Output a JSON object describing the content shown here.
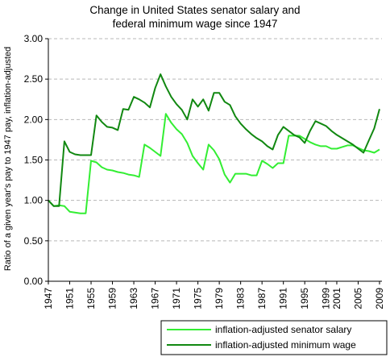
{
  "chart_data": {
    "type": "line",
    "title": [
      "Change in United States senator salary and",
      "federal minimum wage since 1947"
    ],
    "xlabel": "",
    "ylabel": "Ratio of a given year's pay to 1947 pay, inflation-adjusted",
    "xlim": [
      1947,
      2009
    ],
    "ylim": [
      0.0,
      3.0
    ],
    "yticks": [
      "0.00",
      "0.50",
      "1.00",
      "1.50",
      "2.00",
      "2.50",
      "3.00"
    ],
    "xticks": [
      "1947",
      "1951",
      "1955",
      "1959",
      "1963",
      "1967",
      "1971",
      "1975",
      "1979",
      "1983",
      "1987",
      "1991",
      "1995",
      "1999",
      "2001",
      "2005",
      "2009"
    ],
    "grid": "horizontal dashed",
    "legend_position": "bottom-right",
    "series": [
      {
        "name": "inflation-adjusted senator salary",
        "color": "#33ee33",
        "points": [
          [
            1947,
            1.0
          ],
          [
            1948,
            0.93
          ],
          [
            1949,
            0.94
          ],
          [
            1950,
            0.93
          ],
          [
            1951,
            0.86
          ],
          [
            1952,
            0.85
          ],
          [
            1953,
            0.84
          ],
          [
            1954,
            0.84
          ],
          [
            1955,
            1.49
          ],
          [
            1956,
            1.47
          ],
          [
            1957,
            1.41
          ],
          [
            1958,
            1.38
          ],
          [
            1959,
            1.37
          ],
          [
            1960,
            1.35
          ],
          [
            1961,
            1.34
          ],
          [
            1962,
            1.32
          ],
          [
            1963,
            1.31
          ],
          [
            1964,
            1.29
          ],
          [
            1965,
            1.69
          ],
          [
            1966,
            1.65
          ],
          [
            1967,
            1.6
          ],
          [
            1968,
            1.55
          ],
          [
            1969,
            2.07
          ],
          [
            1970,
            1.96
          ],
          [
            1971,
            1.88
          ],
          [
            1972,
            1.82
          ],
          [
            1973,
            1.71
          ],
          [
            1974,
            1.55
          ],
          [
            1975,
            1.46
          ],
          [
            1976,
            1.38
          ],
          [
            1977,
            1.69
          ],
          [
            1978,
            1.62
          ],
          [
            1979,
            1.51
          ],
          [
            1980,
            1.32
          ],
          [
            1981,
            1.22
          ],
          [
            1982,
            1.33
          ],
          [
            1983,
            1.33
          ],
          [
            1984,
            1.33
          ],
          [
            1985,
            1.31
          ],
          [
            1986,
            1.31
          ],
          [
            1987,
            1.49
          ],
          [
            1988,
            1.45
          ],
          [
            1989,
            1.4
          ],
          [
            1990,
            1.46
          ],
          [
            1991,
            1.46
          ],
          [
            1992,
            1.8
          ],
          [
            1993,
            1.8
          ],
          [
            1994,
            1.8
          ],
          [
            1995,
            1.76
          ],
          [
            1996,
            1.72
          ],
          [
            1997,
            1.69
          ],
          [
            1998,
            1.67
          ],
          [
            1999,
            1.67
          ],
          [
            2000,
            1.64
          ],
          [
            2001,
            1.64
          ],
          [
            2002,
            1.66
          ],
          [
            2003,
            1.68
          ],
          [
            2004,
            1.68
          ],
          [
            2005,
            1.65
          ],
          [
            2006,
            1.62
          ],
          [
            2007,
            1.61
          ],
          [
            2008,
            1.59
          ],
          [
            2009,
            1.63
          ]
        ]
      },
      {
        "name": "inflation-adjusted minimum wage",
        "color": "#118811",
        "points": [
          [
            1947,
            1.0
          ],
          [
            1948,
            0.93
          ],
          [
            1949,
            0.93
          ],
          [
            1950,
            1.73
          ],
          [
            1951,
            1.6
          ],
          [
            1952,
            1.57
          ],
          [
            1953,
            1.56
          ],
          [
            1954,
            1.56
          ],
          [
            1955,
            1.56
          ],
          [
            1956,
            2.05
          ],
          [
            1957,
            1.97
          ],
          [
            1958,
            1.91
          ],
          [
            1959,
            1.9
          ],
          [
            1960,
            1.87
          ],
          [
            1961,
            2.13
          ],
          [
            1962,
            2.12
          ],
          [
            1963,
            2.28
          ],
          [
            1964,
            2.25
          ],
          [
            1965,
            2.21
          ],
          [
            1966,
            2.15
          ],
          [
            1967,
            2.39
          ],
          [
            1968,
            2.56
          ],
          [
            1969,
            2.41
          ],
          [
            1970,
            2.28
          ],
          [
            1971,
            2.19
          ],
          [
            1972,
            2.12
          ],
          [
            1973,
            2.0
          ],
          [
            1974,
            2.25
          ],
          [
            1975,
            2.16
          ],
          [
            1976,
            2.25
          ],
          [
            1977,
            2.11
          ],
          [
            1978,
            2.33
          ],
          [
            1979,
            2.33
          ],
          [
            1980,
            2.22
          ],
          [
            1981,
            2.18
          ],
          [
            1982,
            2.04
          ],
          [
            1983,
            1.95
          ],
          [
            1984,
            1.88
          ],
          [
            1985,
            1.82
          ],
          [
            1986,
            1.77
          ],
          [
            1987,
            1.73
          ],
          [
            1988,
            1.67
          ],
          [
            1989,
            1.63
          ],
          [
            1990,
            1.81
          ],
          [
            1991,
            1.91
          ],
          [
            1992,
            1.86
          ],
          [
            1993,
            1.81
          ],
          [
            1994,
            1.78
          ],
          [
            1995,
            1.71
          ],
          [
            1996,
            1.86
          ],
          [
            1997,
            1.98
          ],
          [
            1998,
            1.95
          ],
          [
            1999,
            1.92
          ],
          [
            2000,
            1.86
          ],
          [
            2001,
            1.81
          ],
          [
            2002,
            1.77
          ],
          [
            2003,
            1.73
          ],
          [
            2004,
            1.69
          ],
          [
            2005,
            1.64
          ],
          [
            2006,
            1.59
          ],
          [
            2007,
            1.74
          ],
          [
            2008,
            1.89
          ],
          [
            2009,
            2.13
          ]
        ]
      }
    ]
  }
}
